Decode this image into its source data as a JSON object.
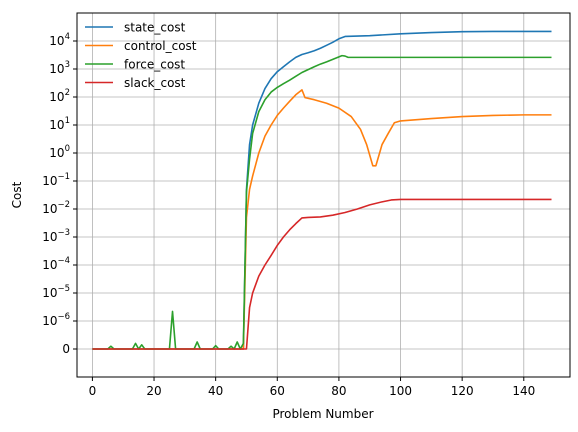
{
  "chart_data": {
    "type": "line",
    "xlabel": "Problem Number",
    "ylabel": "Cost",
    "xlim": [
      -5,
      155
    ],
    "xticks": [
      0,
      20,
      40,
      60,
      80,
      100,
      120,
      140
    ],
    "yscale": "symlog",
    "linthresh": 1e-06,
    "ylim": [
      -1e-06,
      100000.0
    ],
    "yticks": [
      {
        "value": 0,
        "base": "0",
        "exp": ""
      },
      {
        "value": 1e-06,
        "base": "10",
        "exp": "−6"
      },
      {
        "value": 1e-05,
        "base": "10",
        "exp": "−5"
      },
      {
        "value": 0.0001,
        "base": "10",
        "exp": "−4"
      },
      {
        "value": 0.001,
        "base": "10",
        "exp": "−3"
      },
      {
        "value": 0.01,
        "base": "10",
        "exp": "−2"
      },
      {
        "value": 0.1,
        "base": "10",
        "exp": "−1"
      },
      {
        "value": 1,
        "base": "10",
        "exp": "0"
      },
      {
        "value": 10,
        "base": "10",
        "exp": "1"
      },
      {
        "value": 100,
        "base": "10",
        "exp": "2"
      },
      {
        "value": 1000,
        "base": "10",
        "exp": "3"
      },
      {
        "value": 10000,
        "base": "10",
        "exp": "4"
      }
    ],
    "grid": true,
    "legend_position": "top-left",
    "series": [
      {
        "name": "state_cost",
        "color": "#1f77b4",
        "points": [
          [
            0,
            0
          ],
          [
            49,
            0
          ],
          [
            50,
            0.05
          ],
          [
            51,
            2
          ],
          [
            52,
            10
          ],
          [
            54,
            60
          ],
          [
            56,
            200
          ],
          [
            58,
            450
          ],
          [
            60,
            800
          ],
          [
            62,
            1200
          ],
          [
            64,
            1800
          ],
          [
            66,
            2600
          ],
          [
            68,
            3300
          ],
          [
            70,
            3800
          ],
          [
            72,
            4500
          ],
          [
            74,
            5500
          ],
          [
            76,
            7000
          ],
          [
            78,
            9000
          ],
          [
            80,
            12000
          ],
          [
            82,
            14500
          ],
          [
            90,
            15500
          ],
          [
            100,
            18000
          ],
          [
            110,
            20000
          ],
          [
            120,
            21500
          ],
          [
            130,
            22000
          ],
          [
            140,
            22000
          ],
          [
            149,
            22000
          ]
        ]
      },
      {
        "name": "control_cost",
        "color": "#ff7f0e",
        "points": [
          [
            0,
            0
          ],
          [
            49,
            0
          ],
          [
            50,
            0.005
          ],
          [
            51,
            0.05
          ],
          [
            52,
            0.15
          ],
          [
            54,
            1
          ],
          [
            56,
            4
          ],
          [
            58,
            10
          ],
          [
            60,
            22
          ],
          [
            62,
            40
          ],
          [
            64,
            70
          ],
          [
            66,
            120
          ],
          [
            68,
            180
          ],
          [
            69,
            95
          ],
          [
            72,
            80
          ],
          [
            76,
            60
          ],
          [
            80,
            40
          ],
          [
            84,
            20
          ],
          [
            87,
            7
          ],
          [
            89,
            2
          ],
          [
            91,
            0.35
          ],
          [
            92,
            0.35
          ],
          [
            94,
            2
          ],
          [
            96,
            5
          ],
          [
            98,
            12
          ],
          [
            100,
            14
          ],
          [
            110,
            17
          ],
          [
            120,
            20
          ],
          [
            130,
            22
          ],
          [
            140,
            23
          ],
          [
            149,
            23
          ]
        ]
      },
      {
        "name": "force_cost",
        "color": "#2ca02c",
        "points": [
          [
            0,
            0
          ],
          [
            5,
            0
          ],
          [
            6,
            1e-07
          ],
          [
            7,
            0
          ],
          [
            13,
            0
          ],
          [
            14,
            2e-07
          ],
          [
            15,
            0
          ],
          [
            16,
            1.5e-07
          ],
          [
            17,
            0
          ],
          [
            25,
            0
          ],
          [
            26,
            2.2e-06
          ],
          [
            27,
            0
          ],
          [
            33,
            0
          ],
          [
            34,
            2.5e-07
          ],
          [
            35,
            0
          ],
          [
            39,
            0
          ],
          [
            40,
            1.2e-07
          ],
          [
            41,
            0
          ],
          [
            44,
            0
          ],
          [
            45,
            1e-07
          ],
          [
            46,
            0
          ],
          [
            47,
            2.5e-07
          ],
          [
            48,
            0
          ],
          [
            49,
            2e-07
          ],
          [
            50,
            0.04
          ],
          [
            51,
            0.6
          ],
          [
            52,
            5
          ],
          [
            54,
            30
          ],
          [
            56,
            80
          ],
          [
            58,
            150
          ],
          [
            60,
            220
          ],
          [
            62,
            300
          ],
          [
            64,
            400
          ],
          [
            66,
            550
          ],
          [
            68,
            750
          ],
          [
            70,
            950
          ],
          [
            72,
            1200
          ],
          [
            74,
            1500
          ],
          [
            76,
            1800
          ],
          [
            78,
            2200
          ],
          [
            80,
            2700
          ],
          [
            81,
            3000
          ],
          [
            82,
            2900
          ],
          [
            83,
            2600
          ],
          [
            90,
            2600
          ],
          [
            100,
            2600
          ],
          [
            110,
            2600
          ],
          [
            120,
            2600
          ],
          [
            130,
            2600
          ],
          [
            140,
            2600
          ],
          [
            149,
            2600
          ]
        ]
      },
      {
        "name": "slack_cost",
        "color": "#d62728",
        "points": [
          [
            0,
            0
          ],
          [
            50,
            0
          ],
          [
            51,
            3e-06
          ],
          [
            52,
            1e-05
          ],
          [
            54,
            4e-05
          ],
          [
            56,
            0.0001
          ],
          [
            58,
            0.00022
          ],
          [
            60,
            0.0005
          ],
          [
            62,
            0.001
          ],
          [
            64,
            0.0018
          ],
          [
            66,
            0.003
          ],
          [
            68,
            0.0048
          ],
          [
            70,
            0.005
          ],
          [
            74,
            0.0052
          ],
          [
            78,
            0.006
          ],
          [
            82,
            0.0075
          ],
          [
            86,
            0.01
          ],
          [
            90,
            0.014
          ],
          [
            94,
            0.018
          ],
          [
            97,
            0.021
          ],
          [
            100,
            0.022
          ],
          [
            110,
            0.022
          ],
          [
            120,
            0.022
          ],
          [
            130,
            0.022
          ],
          [
            140,
            0.022
          ],
          [
            149,
            0.022
          ]
        ]
      }
    ]
  }
}
